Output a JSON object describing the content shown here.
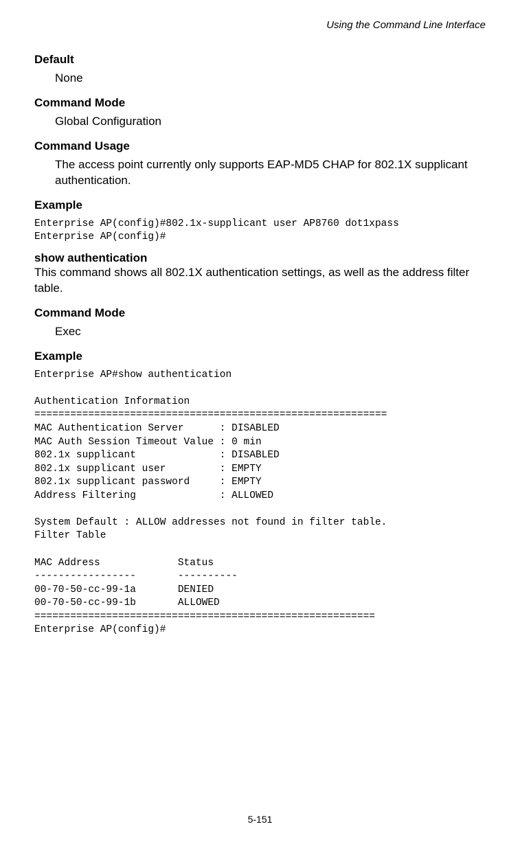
{
  "header": {
    "title": "Using the Command Line Interface"
  },
  "sections": {
    "default": {
      "heading": "Default",
      "body": "None"
    },
    "commandMode1": {
      "heading": "Command Mode",
      "body": "Global Configuration"
    },
    "commandUsage": {
      "heading": "Command Usage",
      "body": "The access point currently only supports EAP-MD5 CHAP for 802.1X supplicant authentication."
    },
    "example1": {
      "heading": "Example",
      "code": "Enterprise AP(config)#802.1x-supplicant user AP8760 dot1xpass\nEnterprise AP(config)#"
    },
    "showAuth": {
      "heading": "show authentication",
      "desc": "This command shows all 802.1X authentication settings, as well as the address filter table."
    },
    "commandMode2": {
      "heading": "Command Mode",
      "body": "Exec"
    },
    "example2": {
      "heading": "Example",
      "code": "Enterprise AP#show authentication\n\nAuthentication Information\n===========================================================\nMAC Authentication Server      : DISABLED\nMAC Auth Session Timeout Value : 0 min\n802.1x supplicant              : DISABLED\n802.1x supplicant user         : EMPTY\n802.1x supplicant password     : EMPTY\nAddress Filtering              : ALLOWED\n\nSystem Default : ALLOW addresses not found in filter table.\nFilter Table\n\nMAC Address             Status\n-----------------       ----------\n00-70-50-cc-99-1a       DENIED\n00-70-50-cc-99-1b       ALLOWED\n=========================================================\nEnterprise AP(config)#"
    }
  },
  "footer": {
    "pageNumber": "5-151"
  }
}
